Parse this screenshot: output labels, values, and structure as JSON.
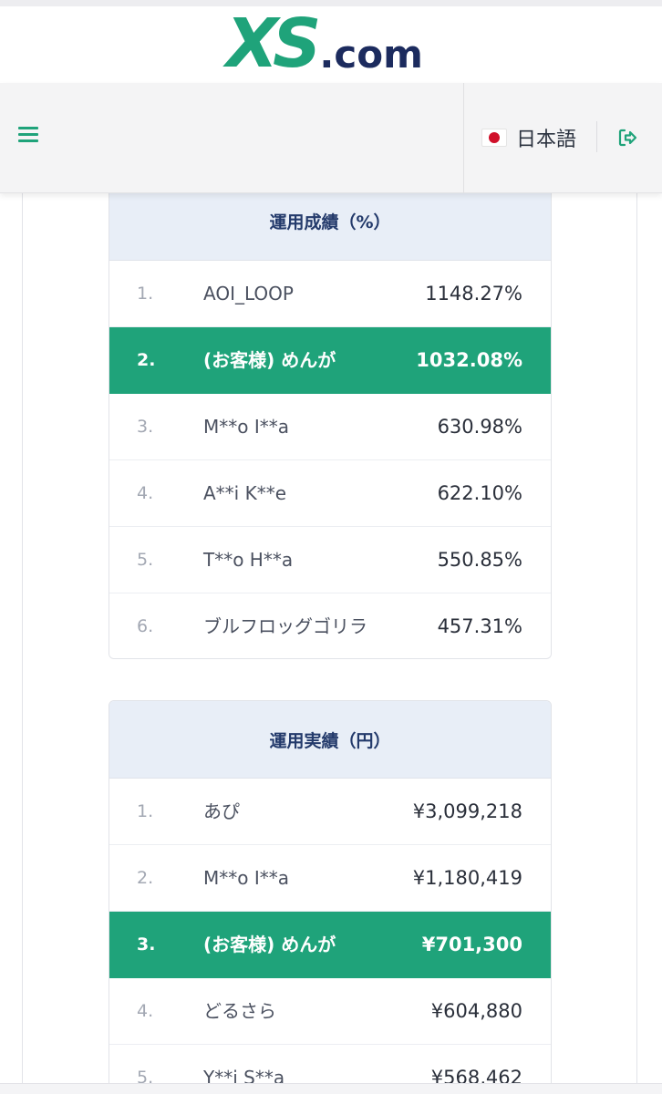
{
  "brand": {
    "logo_main": "XS",
    "logo_suffix": ".com",
    "accent": "#1fa37a",
    "navy": "#1c2b5e"
  },
  "header": {
    "menu_icon": "hamburger-menu-icon",
    "language_label": "日本語",
    "flag_icon": "japan-flag-icon",
    "logout_icon": "logout-icon"
  },
  "rankings_percent": {
    "title": "運用成績（%）",
    "rows": [
      {
        "rank": "1.",
        "name": "AOI_LOOP",
        "value": "1148.27%",
        "highlight": false
      },
      {
        "rank": "2.",
        "name": "(お客様) めんが",
        "value": "1032.08%",
        "highlight": true
      },
      {
        "rank": "3.",
        "name": "M**o I**a",
        "value": "630.98%",
        "highlight": false
      },
      {
        "rank": "4.",
        "name": "A**i K**e",
        "value": "622.10%",
        "highlight": false
      },
      {
        "rank": "5.",
        "name": "T**o H**a",
        "value": "550.85%",
        "highlight": false
      },
      {
        "rank": "6.",
        "name": "ブルフロッグゴリラ",
        "value": "457.31%",
        "highlight": false
      }
    ]
  },
  "rankings_yen": {
    "title": "運用実績（円）",
    "rows": [
      {
        "rank": "1.",
        "name": "あぴ",
        "value": "¥3,099,218",
        "highlight": false
      },
      {
        "rank": "2.",
        "name": "M**o I**a",
        "value": "¥1,180,419",
        "highlight": false
      },
      {
        "rank": "3.",
        "name": "(お客様) めんが",
        "value": "¥701,300",
        "highlight": true
      },
      {
        "rank": "4.",
        "name": "どるさら",
        "value": "¥604,880",
        "highlight": false
      },
      {
        "rank": "5.",
        "name": "Y**i S**a",
        "value": "¥568,462",
        "highlight": false
      }
    ]
  }
}
